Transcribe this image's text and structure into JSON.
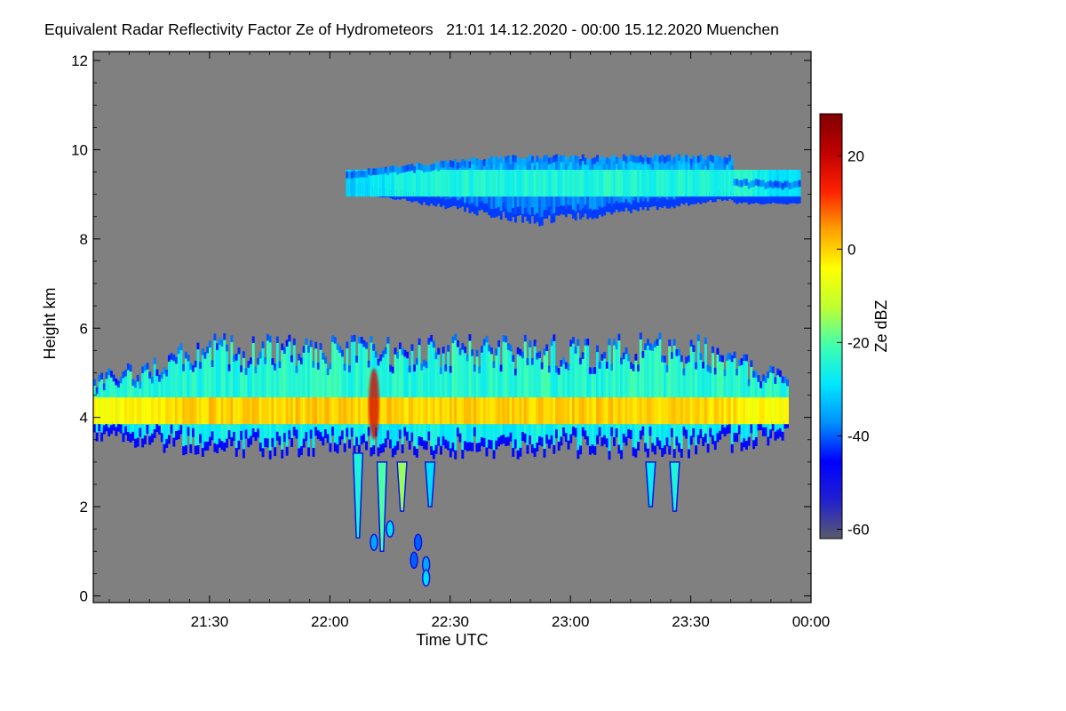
{
  "chart_data": {
    "type": "heatmap",
    "title": "Equivalent Radar Reflectivity Factor Ze of Hydrometeors   21:01 14.12.2020 - 00:00 15.12.2020 Muenchen",
    "xlabel": "Time UTC",
    "ylabel": "Height km",
    "x_unit": "minutes after 21:00 UTC",
    "xlim": [
      1,
      180
    ],
    "ylim": [
      -0.15,
      12.2
    ],
    "x_ticks": [
      {
        "value": 30,
        "label": "21:30"
      },
      {
        "value": 60,
        "label": "22:00"
      },
      {
        "value": 90,
        "label": "22:30"
      },
      {
        "value": 120,
        "label": "23:00"
      },
      {
        "value": 150,
        "label": "23:30"
      },
      {
        "value": 180,
        "label": "00:00"
      }
    ],
    "y_ticks": [
      {
        "value": 0,
        "label": "0"
      },
      {
        "value": 2,
        "label": "2"
      },
      {
        "value": 4,
        "label": "4"
      },
      {
        "value": 6,
        "label": "6"
      },
      {
        "value": 8,
        "label": "8"
      },
      {
        "value": 10,
        "label": "10"
      },
      {
        "value": 12,
        "label": "12"
      }
    ],
    "colorbar": {
      "label": "Ze dBZ",
      "range": [
        -62,
        29
      ],
      "ticks": [
        {
          "value": 20,
          "label": "20"
        },
        {
          "value": 0,
          "label": "0"
        },
        {
          "value": -20,
          "label": "-20"
        },
        {
          "value": -40,
          "label": "-40"
        },
        {
          "value": -60,
          "label": "-60"
        }
      ],
      "colormap": [
        "#5a5a6e",
        "#2020d0",
        "#0000ff",
        "#0090ff",
        "#00e8ff",
        "#40ffb0",
        "#c0ff30",
        "#ffff00",
        "#ffa000",
        "#ff2000",
        "#c00000",
        "#800000"
      ]
    },
    "background_color": "#808080",
    "layers": [
      {
        "name": "lower cloud layer",
        "x_range": [
          1,
          174
        ],
        "base_km": 3.4,
        "top_km": 5.9,
        "core_km": 4.1,
        "core_dbz": -3,
        "edge_dbz": -45,
        "peak": {
          "x": 71,
          "y": 4.3,
          "dbz": 18
        }
      },
      {
        "name": "upper cloud layer",
        "x_range": [
          64,
          177
        ],
        "base_km": 8.6,
        "top_km": 9.9,
        "core_km": 9.2,
        "core_dbz": -28,
        "edge_dbz": -42
      }
    ],
    "fall_streaks": [
      {
        "x": 67,
        "top_km": 3.2,
        "bottom_km": 1.3,
        "dbz": -25
      },
      {
        "x": 73,
        "top_km": 3.0,
        "bottom_km": 1.0,
        "dbz": -20
      },
      {
        "x": 78,
        "top_km": 3.0,
        "bottom_km": 1.9,
        "dbz": -15
      },
      {
        "x": 85,
        "top_km": 3.0,
        "bottom_km": 2.0,
        "dbz": -30
      },
      {
        "x": 140,
        "top_km": 3.0,
        "bottom_km": 2.0,
        "dbz": -28
      },
      {
        "x": 146,
        "top_km": 3.0,
        "bottom_km": 1.9,
        "dbz": -25
      }
    ],
    "isolated_echoes": [
      {
        "x": 75,
        "y": 1.5,
        "dbz": -30
      },
      {
        "x": 71,
        "y": 1.2,
        "dbz": -35
      },
      {
        "x": 82,
        "y": 1.2,
        "dbz": -40
      },
      {
        "x": 84,
        "y": 0.7,
        "dbz": -35
      },
      {
        "x": 81,
        "y": 0.8,
        "dbz": -40
      },
      {
        "x": 84,
        "y": 0.4,
        "dbz": -30
      }
    ]
  }
}
